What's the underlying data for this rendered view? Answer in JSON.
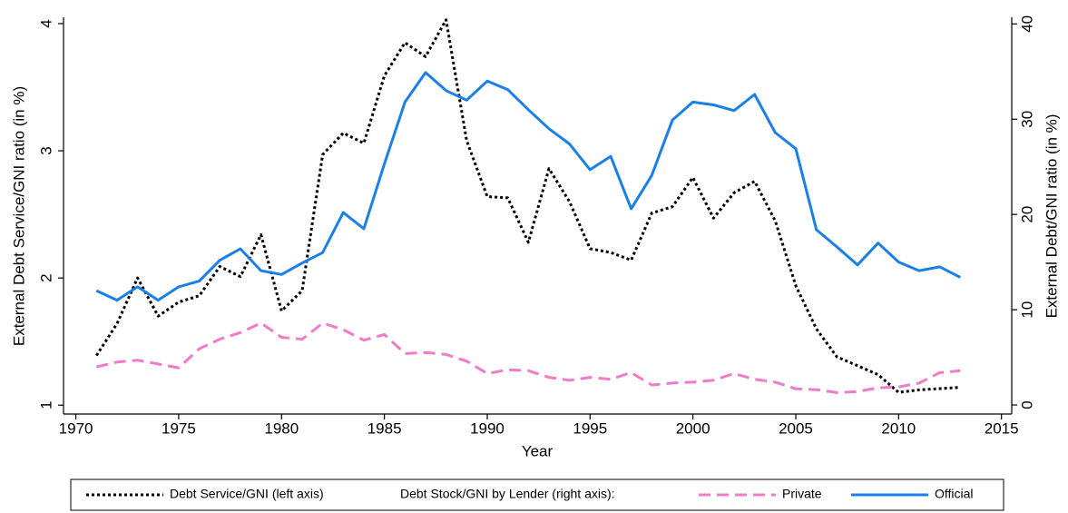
{
  "chart_data": {
    "type": "line",
    "xlabel": "Year",
    "ylabel": "External Debt Service/GNI ratio (in %)",
    "y2label": "External Debt/GNI ratio (in %)",
    "legend_title": "Debt Stock/GNI by Lender (right axis):",
    "x": [
      1971,
      1972,
      1973,
      1974,
      1975,
      1976,
      1977,
      1978,
      1979,
      1980,
      1981,
      1982,
      1983,
      1984,
      1985,
      1986,
      1987,
      1988,
      1989,
      1990,
      1991,
      1992,
      1993,
      1994,
      1995,
      1996,
      1997,
      1998,
      1999,
      2000,
      2001,
      2002,
      2003,
      2004,
      2005,
      2006,
      2007,
      2008,
      2009,
      2010,
      2011,
      2012,
      2013
    ],
    "series": [
      {
        "name": "Debt Service/GNI (left axis)",
        "color": "#000000",
        "dash": "dotted",
        "axis": "y",
        "values": [
          1.39,
          1.64,
          2.0,
          1.7,
          1.81,
          1.86,
          2.09,
          2.01,
          2.34,
          1.74,
          1.9,
          2.97,
          3.14,
          3.06,
          3.59,
          3.85,
          3.74,
          4.03,
          3.08,
          2.64,
          2.63,
          2.28,
          2.86,
          2.6,
          2.23,
          2.2,
          2.14,
          2.51,
          2.56,
          2.79,
          2.47,
          2.67,
          2.76,
          2.45,
          1.94,
          1.6,
          1.38,
          1.31,
          1.24,
          1.1,
          1.12,
          1.13,
          1.14
        ]
      },
      {
        "name": "Private",
        "color": "#f07cc8",
        "dash": "dashed",
        "axis": "y2",
        "values": [
          4.0,
          4.5,
          4.7,
          4.3,
          3.9,
          5.9,
          6.9,
          7.6,
          8.6,
          7.1,
          6.9,
          8.6,
          7.9,
          6.8,
          7.4,
          5.4,
          5.5,
          5.3,
          4.6,
          3.3,
          3.7,
          3.6,
          2.9,
          2.6,
          2.9,
          2.7,
          3.4,
          2.1,
          2.3,
          2.4,
          2.6,
          3.3,
          2.7,
          2.4,
          1.7,
          1.6,
          1.3,
          1.4,
          1.8,
          1.9,
          2.3,
          3.4,
          3.6
        ]
      },
      {
        "name": "Official",
        "color": "#1a80e8",
        "dash": "solid",
        "axis": "y2",
        "values": [
          12.0,
          11.0,
          12.4,
          11.0,
          12.4,
          13.0,
          15.2,
          16.4,
          14.1,
          13.7,
          14.9,
          16.0,
          20.2,
          18.5,
          25.3,
          31.8,
          34.9,
          33.0,
          32.0,
          34.0,
          33.1,
          31.0,
          29.0,
          27.4,
          24.7,
          26.1,
          20.6,
          24.1,
          29.9,
          31.8,
          31.5,
          30.9,
          32.6,
          28.6,
          26.9,
          18.4,
          16.6,
          14.7,
          17.0,
          15.0,
          14.1,
          14.5,
          13.4
        ]
      }
    ],
    "xlim": [
      1969.4,
      2015.5
    ],
    "xticks": [
      1970,
      1975,
      1980,
      1985,
      1990,
      1995,
      2000,
      2005,
      2010,
      2015
    ],
    "ylim": [
      0.93,
      4.05
    ],
    "yticks": [
      1,
      2,
      3,
      4
    ],
    "y2lim": [
      -0.95,
      40.7
    ],
    "y2ticks": [
      0,
      10,
      20,
      30,
      40
    ],
    "grid": false,
    "legend": "bottom"
  }
}
